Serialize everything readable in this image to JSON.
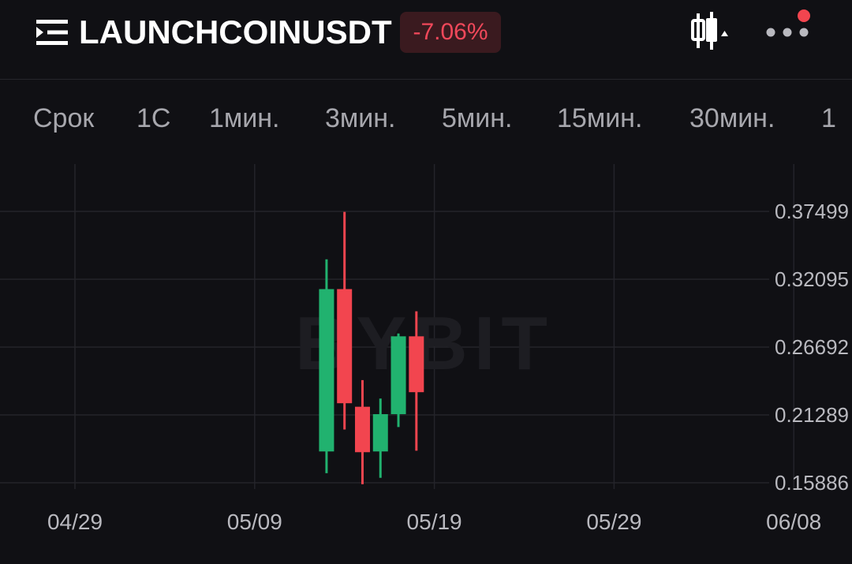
{
  "header": {
    "symbol": "LAUNCHCOINUSDT",
    "change": "-7.06%",
    "icons": [
      "menu-icon",
      "candlestick-chart-icon",
      "more-dots-icon"
    ],
    "notification_dot": true
  },
  "tabs": [
    "Срок",
    "1С",
    "1мин.",
    "3мин.",
    "5мин.",
    "15мин.",
    "30мин.",
    "1"
  ],
  "colors": {
    "up": "#21b26f",
    "down": "#f2454f",
    "background": "#101014",
    "grid": "#24242a",
    "change_badge_bg": "#3a1a1f"
  },
  "chart_data": {
    "type": "candlestick",
    "watermark": "BYBIT",
    "y_ticks": [
      "0.37499",
      "0.32095",
      "0.26692",
      "0.21289",
      "0.15886"
    ],
    "x_ticks": [
      "04/29",
      "05/09",
      "05/19",
      "05/29",
      "06/08"
    ],
    "ylim": [
      0.15886,
      0.37499
    ],
    "candles": [
      {
        "date": "05/13",
        "open": 0.1838,
        "high": 0.3368,
        "low": 0.1665,
        "close": 0.3131
      },
      {
        "date": "05/14",
        "open": 0.3131,
        "high": 0.3746,
        "low": 0.2013,
        "close": 0.2222
      },
      {
        "date": "05/15",
        "open": 0.2194,
        "high": 0.2406,
        "low": 0.1577,
        "close": 0.1832
      },
      {
        "date": "05/16",
        "open": 0.1838,
        "high": 0.2259,
        "low": 0.1628,
        "close": 0.2135
      },
      {
        "date": "05/17",
        "open": 0.2135,
        "high": 0.2778,
        "low": 0.2032,
        "close": 0.2755
      },
      {
        "date": "05/18",
        "open": 0.2755,
        "high": 0.2954,
        "low": 0.1844,
        "close": 0.231
      }
    ]
  }
}
